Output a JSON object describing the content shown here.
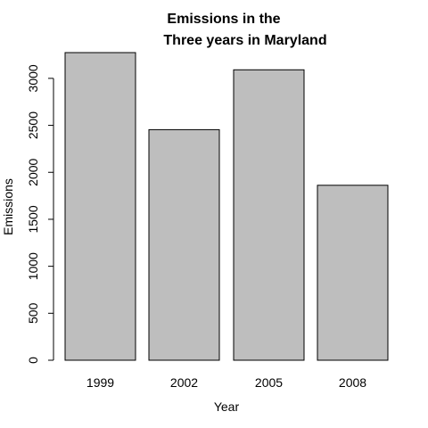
{
  "chart_data": {
    "type": "bar",
    "title": [
      "Emissions in the",
      "Three years in Maryland"
    ],
    "xlabel": "Year",
    "ylabel": "Emissions",
    "categories": [
      "1999",
      "2002",
      "2005",
      "2008"
    ],
    "values": [
      3274,
      2454,
      3091,
      1862
    ],
    "ylim": [
      0,
      3274
    ],
    "yticks": [
      0,
      500,
      1000,
      1500,
      2000,
      2500,
      3000
    ],
    "grid": false,
    "legend": "none",
    "bar_color": "#bebebe",
    "bar_edge_color": "#000000"
  }
}
